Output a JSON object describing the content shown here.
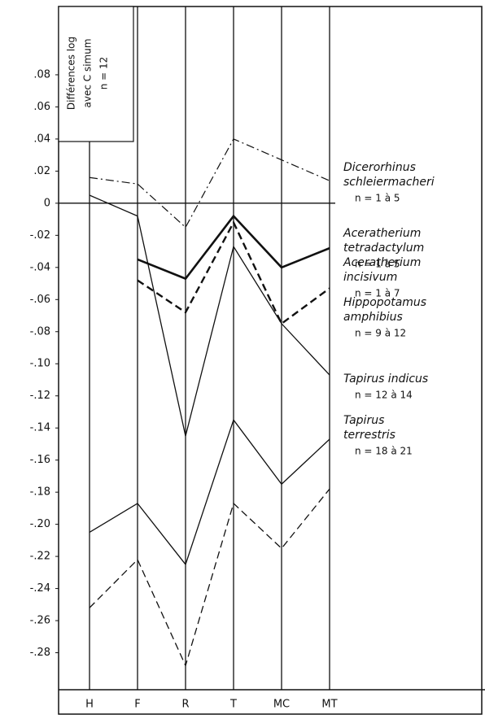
{
  "chart_data": {
    "type": "line",
    "ylabel": [
      "Différences log",
      "avec C simum",
      "n = 12"
    ],
    "categories": [
      "H",
      "F",
      "R",
      "T",
      "MC",
      "MT"
    ],
    "ylim": [
      -0.3,
      0.12
    ],
    "yticks": [
      {
        "value": 0.08,
        "label": ".08"
      },
      {
        "value": 0.06,
        "label": ".06"
      },
      {
        "value": 0.04,
        "label": ".04"
      },
      {
        "value": 0.02,
        "label": ".02"
      },
      0,
      {
        "value": -0.02,
        "label": "-.02"
      },
      {
        "value": -0.04,
        "label": "-.04"
      },
      {
        "value": -0.06,
        "label": "-.06"
      },
      {
        "value": -0.08,
        "label": "-.08"
      },
      {
        "value": -0.1,
        "label": "-.10"
      },
      {
        "value": -0.12,
        "label": "-.12"
      },
      {
        "value": -0.14,
        "label": "-.14"
      },
      {
        "value": -0.16,
        "label": "-.16"
      },
      {
        "value": -0.18,
        "label": "-.18"
      },
      {
        "value": -0.2,
        "label": "-.20"
      },
      {
        "value": -0.22,
        "label": "-.22"
      },
      {
        "value": -0.24,
        "label": "-.24"
      },
      {
        "value": -0.26,
        "label": "-.26"
      },
      {
        "value": -0.28,
        "label": "-.28"
      }
    ],
    "series": [
      {
        "name": [
          "Dicerorhinus",
          "schleiermacheri"
        ],
        "n": "n = 1 à 5",
        "color": "#111",
        "linestyle": "dashdot",
        "linewidth": 1.2,
        "values": [
          0.016,
          0.012,
          -0.015,
          0.04,
          0.027,
          0.014
        ]
      },
      {
        "name": [
          "Aceratherium",
          "tetradactylum"
        ],
        "n": "n = 1 à 5",
        "color": "#111",
        "linestyle": "solid",
        "linewidth": 2.6,
        "values": [
          null,
          -0.035,
          -0.047,
          -0.008,
          -0.04,
          -0.028
        ]
      },
      {
        "name": [
          "Aceratherium",
          "incisivum"
        ],
        "n": "n = 1 à 7",
        "color": "#111",
        "linestyle": "dashed",
        "linewidth": 2.4,
        "values": [
          null,
          -0.048,
          -0.068,
          -0.012,
          -0.075,
          -0.053
        ]
      },
      {
        "name": [
          "Hippopotamus",
          "amphibius"
        ],
        "n": "n = 9 à 12",
        "color": "#111",
        "linestyle": "solid",
        "linewidth": 1.3,
        "values": [
          0.005,
          -0.008,
          -0.145,
          -0.027,
          -0.075,
          -0.107
        ]
      },
      {
        "name": [
          "Tapirus indicus"
        ],
        "n": "n = 12 à 14",
        "color": "#111",
        "linestyle": "solid",
        "linewidth": 1.3,
        "values": [
          -0.205,
          -0.187,
          -0.225,
          -0.135,
          -0.175,
          -0.147
        ]
      },
      {
        "name": [
          "Tapirus",
          "terrestris"
        ],
        "n": "n = 18 à 21",
        "color": "#111",
        "linestyle": "dashed",
        "linewidth": 1.3,
        "values": [
          -0.252,
          -0.222,
          -0.288,
          -0.187,
          -0.215,
          -0.178
        ]
      }
    ]
  }
}
